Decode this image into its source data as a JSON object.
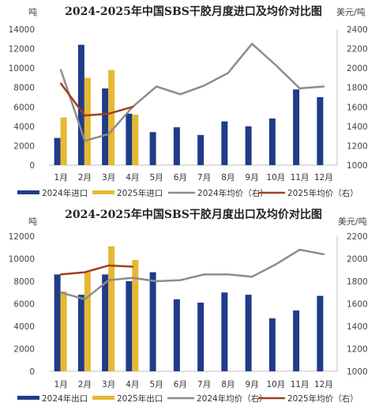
{
  "colors": {
    "bar_2024": "#1f3c88",
    "bar_2025": "#e6b833",
    "line_2024": "#8c8c8c",
    "line_2025": "#a0401e",
    "axis": "#bfbfbf"
  },
  "chart_data": [
    {
      "type": "bar",
      "title": "2024-2025年中国SBS干胶月度进口及均价对比图",
      "ylabel": "吨",
      "y2label": "美元/吨",
      "ylim": [
        0,
        14000
      ],
      "y_ticks": [
        0,
        2000,
        4000,
        6000,
        8000,
        10000,
        12000,
        14000
      ],
      "y2lim": [
        1000,
        2400
      ],
      "y2_ticks": [
        1000,
        1200,
        1400,
        1600,
        1800,
        2000,
        2200,
        2400
      ],
      "categories": [
        "1月",
        "2月",
        "3月",
        "4月",
        "5月",
        "6月",
        "7月",
        "8月",
        "9月",
        "10月",
        "11月",
        "12月"
      ],
      "series": [
        {
          "name": "2024年进口",
          "kind": "bar",
          "axis": "left",
          "values": [
            2800,
            12400,
            7900,
            5300,
            3400,
            3900,
            3100,
            4500,
            4000,
            4800,
            7800,
            7000
          ]
        },
        {
          "name": "2025年进口",
          "kind": "bar",
          "axis": "left",
          "values": [
            4900,
            9000,
            9800,
            5200,
            null,
            null,
            null,
            null,
            null,
            null,
            null,
            null
          ]
        },
        {
          "name": "2024年均价（右）",
          "kind": "line",
          "axis": "right",
          "values": [
            1980,
            1250,
            1320,
            1600,
            1810,
            1730,
            1820,
            1950,
            2250,
            2030,
            1790,
            1810
          ]
        },
        {
          "name": "2025年均价（右）",
          "kind": "line",
          "axis": "right",
          "values": [
            1840,
            1510,
            1530,
            1600,
            null,
            null,
            null,
            null,
            null,
            null,
            null,
            null
          ]
        }
      ],
      "legend_position": "bottom"
    },
    {
      "type": "bar",
      "title": "2024-2025年中国SBS干胶月度出口及均价对比图",
      "ylabel": "吨",
      "y2label": "美元/吨",
      "ylim": [
        0,
        12000
      ],
      "y_ticks": [
        0,
        2000,
        4000,
        6000,
        8000,
        10000,
        12000
      ],
      "y2lim": [
        1000,
        2200
      ],
      "y2_ticks": [
        1000,
        1200,
        1400,
        1600,
        1800,
        2000,
        2200
      ],
      "categories": [
        "1月",
        "2月",
        "3月",
        "4月",
        "5月",
        "6月",
        "7月",
        "8月",
        "9月",
        "10月",
        "11月",
        "12月"
      ],
      "series": [
        {
          "name": "2024年出口",
          "kind": "bar",
          "axis": "left",
          "values": [
            8600,
            6800,
            8600,
            8000,
            8800,
            6400,
            6100,
            7000,
            6800,
            4700,
            5400,
            6700
          ]
        },
        {
          "name": "2025年出口",
          "kind": "bar",
          "axis": "left",
          "values": [
            7100,
            8800,
            11100,
            9900,
            null,
            null,
            null,
            null,
            null,
            null,
            null,
            null
          ]
        },
        {
          "name": "2024年均价（右）",
          "kind": "line",
          "axis": "right",
          "values": [
            1700,
            1640,
            1810,
            1830,
            1800,
            1810,
            1860,
            1860,
            1840,
            1950,
            2080,
            2040
          ]
        },
        {
          "name": "2025年均价（右）",
          "kind": "line",
          "axis": "right",
          "values": [
            1860,
            1880,
            1940,
            1930,
            null,
            null,
            null,
            null,
            null,
            null,
            null,
            null
          ]
        }
      ],
      "legend_position": "bottom"
    }
  ]
}
